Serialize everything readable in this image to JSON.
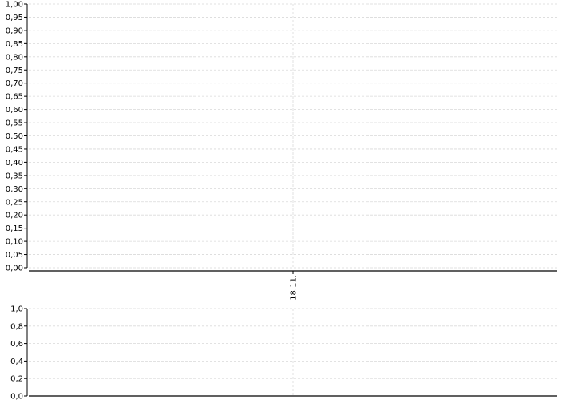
{
  "chart_data": [
    {
      "type": "line",
      "title": "",
      "xlabel": "",
      "ylabel": "",
      "x_ticks": [
        "18.11."
      ],
      "y_ticks": [
        "0,00",
        "0,05",
        "0,10",
        "0,15",
        "0,20",
        "0,25",
        "0,30",
        "0,35",
        "0,40",
        "0,45",
        "0,50",
        "0,55",
        "0,60",
        "0,65",
        "0,70",
        "0,75",
        "0,80",
        "0,85",
        "0,90",
        "0,95",
        "1,00"
      ],
      "ylim": [
        0,
        1
      ],
      "grid": true,
      "series": []
    },
    {
      "type": "bar",
      "title": "",
      "xlabel": "",
      "ylabel": "",
      "y_ticks": [
        "0,0",
        "0,2",
        "0,4",
        "0,6",
        "0,8",
        "1,0"
      ],
      "ylim": [
        0,
        1
      ],
      "grid": true,
      "series": []
    }
  ],
  "colors": {
    "grid": "#d9d9d9",
    "axis": "#000000"
  }
}
